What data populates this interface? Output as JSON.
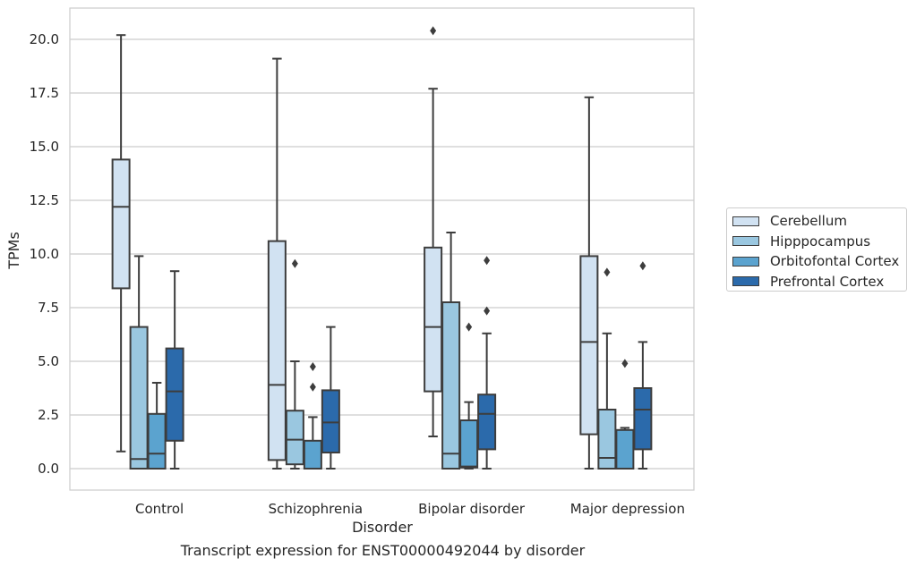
{
  "chart_data": {
    "type": "box",
    "xlabel": "Disorder",
    "ylabel": "TPMs",
    "caption": "Transcript expression for ENST00000492044 by disorder",
    "ylim": [
      -1.0,
      21.5
    ],
    "yticks": [
      "0.0",
      "2.5",
      "5.0",
      "7.5",
      "10.0",
      "12.5",
      "15.0",
      "17.5",
      "20.0"
    ],
    "grid": true,
    "legend_position": "right",
    "categories": [
      "Control",
      "Schizophrenia",
      "Bipolar disorder",
      "Major depression"
    ],
    "series": [
      {
        "name": "Cerebellum",
        "color": "#d1e2f2",
        "boxes": [
          {
            "whisker_low": 0.8,
            "q1": 8.4,
            "median": 12.2,
            "q3": 14.4,
            "whisker_high": 20.2,
            "outliers": []
          },
          {
            "whisker_low": 0.0,
            "q1": 0.4,
            "median": 3.9,
            "q3": 10.6,
            "whisker_high": 19.1,
            "outliers": []
          },
          {
            "whisker_low": 1.5,
            "q1": 3.6,
            "median": 6.6,
            "q3": 10.3,
            "whisker_high": 17.7,
            "outliers": [
              20.4
            ]
          },
          {
            "whisker_low": 0.0,
            "q1": 1.6,
            "median": 5.9,
            "q3": 9.9,
            "whisker_high": 17.3,
            "outliers": []
          }
        ]
      },
      {
        "name": "Hipppocampus",
        "color": "#9ac7e0",
        "boxes": [
          {
            "whisker_low": 0.0,
            "q1": 0.0,
            "median": 0.45,
            "q3": 6.6,
            "whisker_high": 9.9,
            "outliers": []
          },
          {
            "whisker_low": 0.0,
            "q1": 0.2,
            "median": 1.35,
            "q3": 2.7,
            "whisker_high": 5.0,
            "outliers": [
              9.55
            ]
          },
          {
            "whisker_low": 0.0,
            "q1": 0.0,
            "median": 0.7,
            "q3": 7.75,
            "whisker_high": 11.0,
            "outliers": []
          },
          {
            "whisker_low": 0.0,
            "q1": 0.0,
            "median": 0.5,
            "q3": 2.75,
            "whisker_high": 6.3,
            "outliers": [
              9.15
            ]
          }
        ]
      },
      {
        "name": "Orbitofontal Cortex",
        "color": "#5ba3cf",
        "boxes": [
          {
            "whisker_low": 0.0,
            "q1": 0.0,
            "median": 0.7,
            "q3": 2.55,
            "whisker_high": 4.0,
            "outliers": []
          },
          {
            "whisker_low": 0.0,
            "q1": 0.0,
            "median": 0.0,
            "q3": 1.3,
            "whisker_high": 2.4,
            "outliers": [
              3.8,
              4.75
            ]
          },
          {
            "whisker_low": 0.0,
            "q1": 0.05,
            "median": 0.1,
            "q3": 2.25,
            "whisker_high": 3.1,
            "outliers": [
              6.6
            ]
          },
          {
            "whisker_low": 0.0,
            "q1": 0.0,
            "median": 0.0,
            "q3": 1.8,
            "whisker_high": 1.9,
            "outliers": [
              4.9
            ]
          }
        ]
      },
      {
        "name": "Prefrontal Cortex",
        "color": "#2b6aab",
        "boxes": [
          {
            "whisker_low": 0.0,
            "q1": 1.3,
            "median": 3.6,
            "q3": 5.6,
            "whisker_high": 9.2,
            "outliers": []
          },
          {
            "whisker_low": 0.0,
            "q1": 0.75,
            "median": 2.15,
            "q3": 3.65,
            "whisker_high": 6.6,
            "outliers": []
          },
          {
            "whisker_low": 0.0,
            "q1": 0.9,
            "median": 2.55,
            "q3": 3.45,
            "whisker_high": 6.3,
            "outliers": [
              7.35,
              9.7
            ]
          },
          {
            "whisker_low": 0.0,
            "q1": 0.9,
            "median": 2.75,
            "q3": 3.75,
            "whisker_high": 5.9,
            "outliers": [
              9.45
            ]
          }
        ]
      }
    ]
  }
}
